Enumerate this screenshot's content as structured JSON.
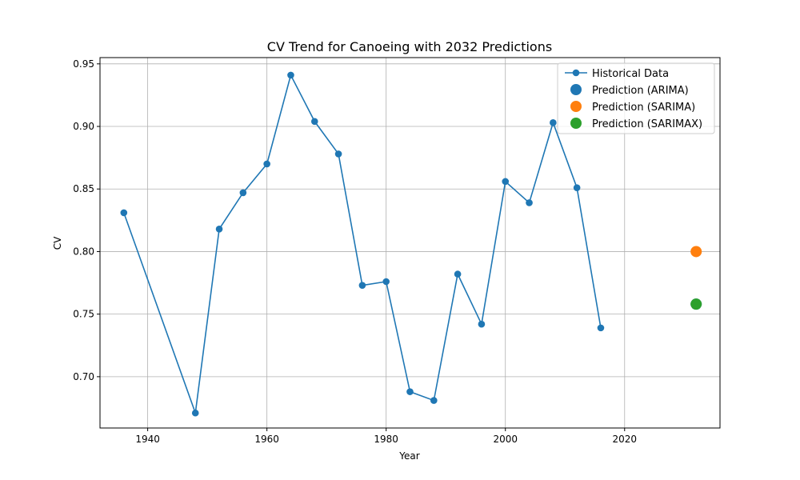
{
  "chart_data": {
    "type": "line",
    "title": "CV Trend for Canoeing with 2032 Predictions",
    "xlabel": "Year",
    "ylabel": "CV",
    "xlim": [
      1932,
      2036
    ],
    "ylim": [
      0.659,
      0.955
    ],
    "xticks": [
      1940,
      1960,
      1980,
      2000,
      2020
    ],
    "yticks": [
      0.7,
      0.75,
      0.8,
      0.85,
      0.9,
      0.95
    ],
    "xtick_labels": [
      "1940",
      "1960",
      "1980",
      "2000",
      "2020"
    ],
    "ytick_labels": [
      "0.70",
      "0.75",
      "0.80",
      "0.85",
      "0.90",
      "0.95"
    ],
    "grid": true,
    "legend_position": "top-right",
    "series": [
      {
        "name": "Historical Data",
        "kind": "line-marker",
        "color": "#1f77b4",
        "x": [
          1936,
          1948,
          1952,
          1956,
          1960,
          1964,
          1968,
          1972,
          1976,
          1980,
          1984,
          1988,
          1992,
          1996,
          2000,
          2004,
          2008,
          2012,
          2016
        ],
        "y": [
          0.831,
          0.671,
          0.818,
          0.847,
          0.87,
          0.941,
          0.904,
          0.878,
          0.773,
          0.776,
          0.688,
          0.681,
          0.782,
          0.742,
          0.856,
          0.839,
          0.903,
          0.851,
          0.739
        ]
      },
      {
        "name": "Prediction (ARIMA)",
        "kind": "scatter",
        "color": "#1f77b4",
        "x": [
          2032
        ],
        "y": [
          0.758
        ]
      },
      {
        "name": "Prediction (SARIMA)",
        "kind": "scatter",
        "color": "#ff7f0e",
        "x": [
          2032
        ],
        "y": [
          0.8
        ]
      },
      {
        "name": "Prediction (SARIMAX)",
        "kind": "scatter",
        "color": "#2ca02c",
        "x": [
          2032
        ],
        "y": [
          0.758
        ]
      }
    ]
  }
}
